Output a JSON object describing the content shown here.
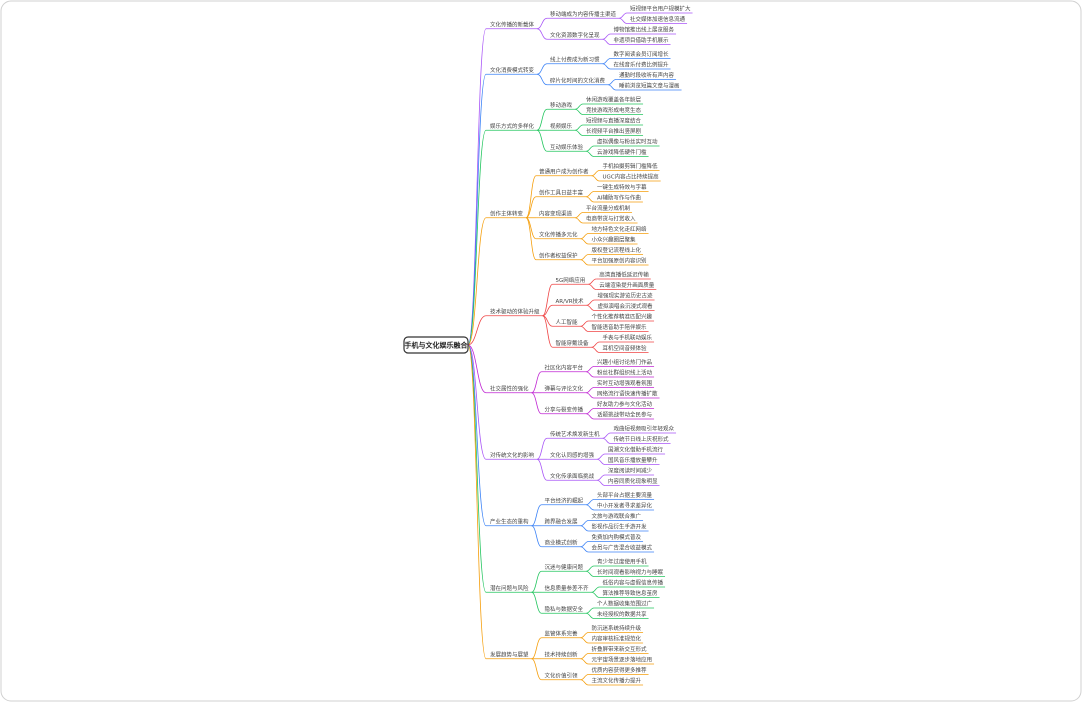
{
  "title": "手机与文化娱乐融合",
  "branches": [
    {
      "label": "文化传播的新载体",
      "children": [
        {
          "label": "移动端成为内容传播主渠道",
          "leaves": [
            "短视频平台用户规模扩大",
            "社交媒体加速信息流通"
          ]
        },
        {
          "label": "文化资源数字化呈现",
          "leaves": [
            "博物馆推出线上展览服务",
            "非遗项目借助手机展示"
          ]
        }
      ]
    },
    {
      "label": "文化消费模式转变",
      "children": [
        {
          "label": "线上付费成为新习惯",
          "leaves": [
            "数字阅读会员订阅增长",
            "在线音乐付费比例提升"
          ]
        },
        {
          "label": "碎片化时间的文化消费",
          "leaves": [
            "通勤时段收听有声内容",
            "睡前浏览短篇文章与漫画"
          ]
        }
      ]
    },
    {
      "label": "娱乐方式的多样化",
      "children": [
        {
          "label": "移动游戏",
          "leaves": [
            "休闲游戏覆盖各年龄层",
            "竞技游戏形成电竞生态"
          ]
        },
        {
          "label": "视频娱乐",
          "leaves": [
            "短视频与直播深度结合",
            "长视频平台推出竖屏剧"
          ]
        },
        {
          "label": "互动娱乐体验",
          "leaves": [
            "虚拟偶像与粉丝实时互动",
            "云游戏降低硬件门槛"
          ]
        }
      ]
    },
    {
      "label": "创作主体转变",
      "children": [
        {
          "label": "普通用户成为创作者",
          "leaves": [
            "手机拍摄剪辑门槛降低",
            "UGC内容占比持续提高"
          ]
        },
        {
          "label": "创作工具日益丰富",
          "leaves": [
            "一键生成特效与字幕",
            "AI辅助写作与作曲"
          ]
        },
        {
          "label": "内容变现渠道",
          "leaves": [
            "平台流量分成机制",
            "电商带货与打赏收入"
          ]
        },
        {
          "label": "文化传播多元化",
          "leaves": [
            "地方特色文化走红网络",
            "小众兴趣圈层聚集"
          ]
        },
        {
          "label": "创作者权益保护",
          "leaves": [
            "版权登记流程线上化",
            "平台加强原创内容识别"
          ]
        }
      ]
    },
    {
      "label": "技术驱动的体验升级",
      "children": [
        {
          "label": "5G网络应用",
          "leaves": [
            "高清直播低延迟传输",
            "云端渲染提升画面质量"
          ]
        },
        {
          "label": "AR/VR技术",
          "leaves": [
            "增强现实游览历史古迹",
            "虚拟演唱会沉浸式观看"
          ]
        },
        {
          "label": "人工智能",
          "leaves": [
            "个性化推荐精准匹配兴趣",
            "智能语音助手陪伴娱乐"
          ]
        },
        {
          "label": "智能穿戴设备",
          "leaves": [
            "手表与手机联动娱乐",
            "耳机空间音频体验"
          ]
        }
      ]
    },
    {
      "label": "社交属性的强化",
      "children": [
        {
          "label": "社区化内容平台",
          "leaves": [
            "兴趣小组讨论热门作品",
            "粉丝社群组织线上活动"
          ]
        },
        {
          "label": "弹幕与评论文化",
          "leaves": [
            "实时互动增强观看氛围",
            "网络流行语快速传播扩散"
          ]
        },
        {
          "label": "分享与裂变传播",
          "leaves": [
            "好友助力参与文化活动",
            "话题挑战带动全民参与"
          ]
        }
      ]
    },
    {
      "label": "对传统文化的影响",
      "children": [
        {
          "label": "传统艺术焕发新生机",
          "leaves": [
            "戏曲短视频吸引年轻观众",
            "传统节日线上庆祝形式"
          ]
        },
        {
          "label": "文化认同感的增强",
          "leaves": [
            "国潮文化借助手机流行",
            "国风音乐播放量攀升"
          ]
        },
        {
          "label": "文化传承面临挑战",
          "leaves": [
            "深度阅读时间减少",
            "内容同质化现象明显"
          ]
        }
      ]
    },
    {
      "label": "产业生态的重构",
      "children": [
        {
          "label": "平台经济的崛起",
          "leaves": [
            "头部平台占据主要流量",
            "中小开发者寻求差异化"
          ]
        },
        {
          "label": "跨界融合发展",
          "leaves": [
            "文旅与游戏联合推广",
            "影视作品衍生手游开发"
          ]
        },
        {
          "label": "商业模式创新",
          "leaves": [
            "免费加内购模式普及",
            "会员与广告混合收益模式"
          ]
        }
      ]
    },
    {
      "label": "潜在问题与风险",
      "children": [
        {
          "label": "沉迷与健康问题",
          "leaves": [
            "青少年过度使用手机",
            "长时间观看影响视力与睡眠"
          ]
        },
        {
          "label": "信息质量参差不齐",
          "leaves": [
            "低俗内容与虚假信息传播",
            "算法推荐导致信息茧房"
          ]
        },
        {
          "label": "隐私与数据安全",
          "leaves": [
            "个人数据收集范围过广",
            "未经授权的数据共享"
          ]
        }
      ]
    },
    {
      "label": "发展趋势与展望",
      "children": [
        {
          "label": "监管体系完善",
          "leaves": [
            "防沉迷系统持续升级",
            "内容审核标准规范化"
          ]
        },
        {
          "label": "技术持续创新",
          "leaves": [
            "折叠屏带来新交互形式",
            "元宇宙场景逐步落地应用"
          ]
        },
        {
          "label": "文化价值引领",
          "leaves": [
            "优质内容获得更多推荐",
            "主流文化传播力提升"
          ]
        }
      ]
    }
  ]
}
